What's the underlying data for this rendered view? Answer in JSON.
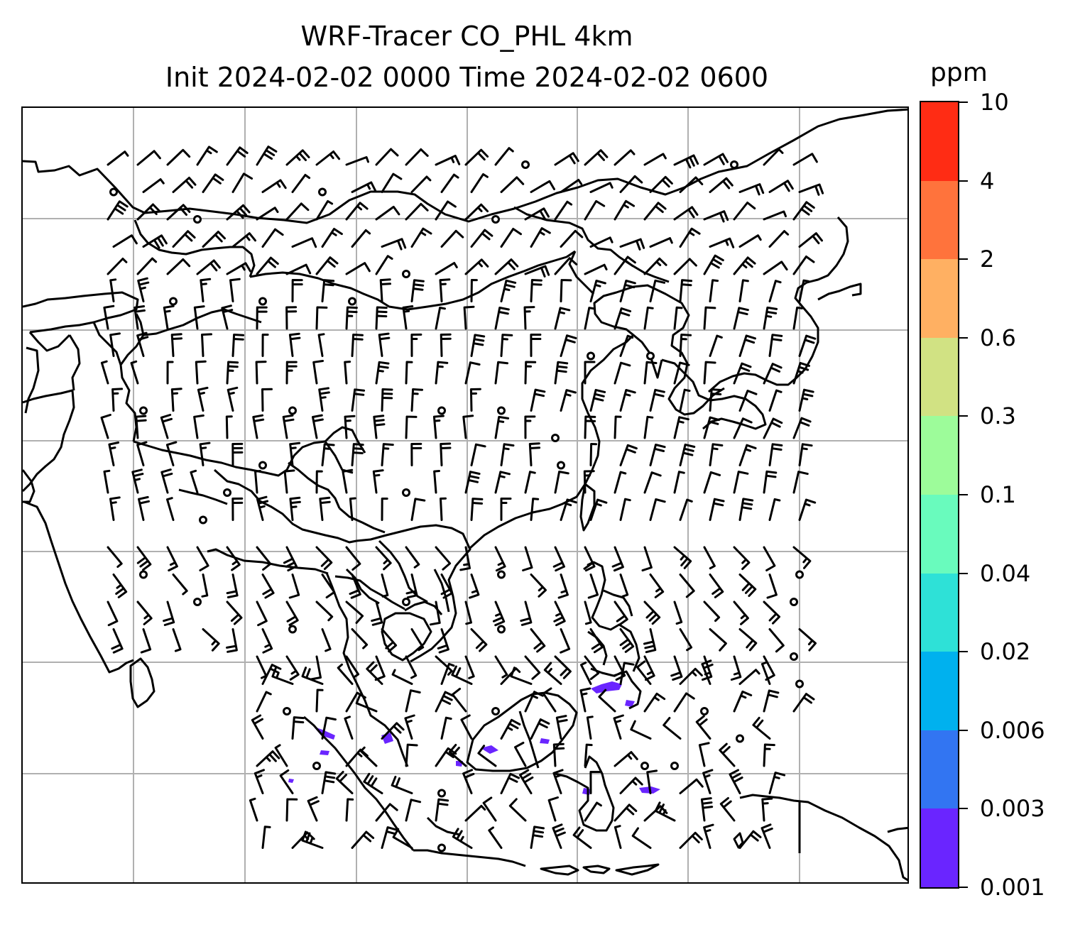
{
  "title": {
    "line1": "WRF-Tracer CO_PHL 4km",
    "line2": "Init 2024-02-02 0000 Time 2024-02-02 0600"
  },
  "colorbar": {
    "unit": "ppm",
    "ticks": [
      "0.001",
      "0.003",
      "0.006",
      "0.02",
      "0.04",
      "0.1",
      "0.3",
      "0.6",
      "2",
      "4",
      "10"
    ],
    "colors": [
      "#6a25ff",
      "#3275f2",
      "#00b1ee",
      "#2ee1d7",
      "#69fbbd",
      "#9dfc9a",
      "#d1e283",
      "#ffb062",
      "#ff733c",
      "#ff2c14"
    ]
  },
  "map": {
    "layers": [
      "coastlines",
      "country-borders",
      "gridlines",
      "wind-barbs",
      "co-tracer-concentration"
    ],
    "colors": {
      "land_line": "#000000",
      "gridline": "#b0b0b0",
      "tracer": "#6a25ff"
    }
  }
}
